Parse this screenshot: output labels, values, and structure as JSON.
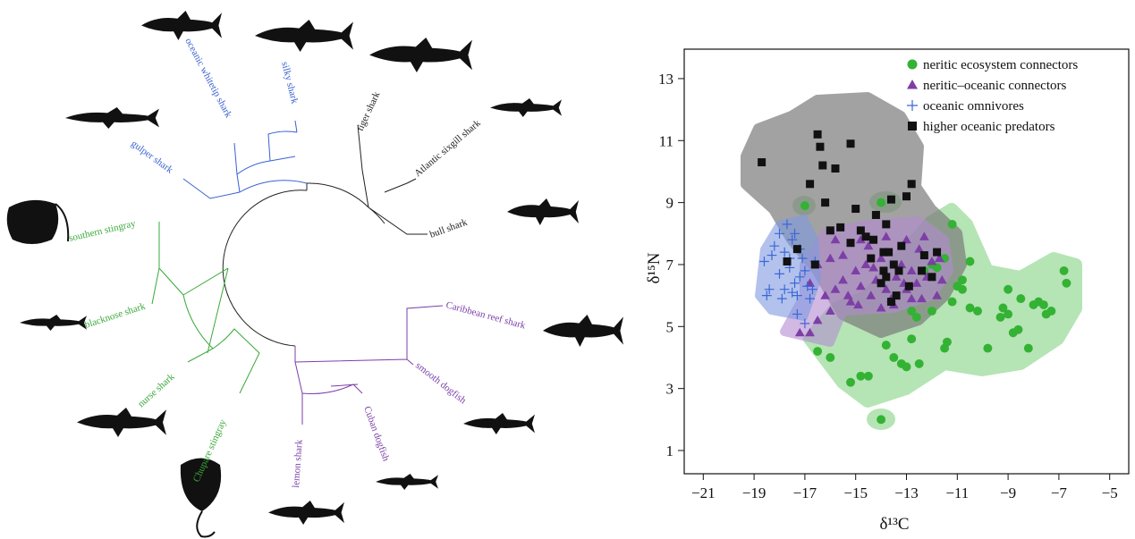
{
  "tree": {
    "leaves": [
      "oceanic whitetip shark",
      "silky shark",
      "tiger shark",
      "Atlantic sixgill shark",
      "bull shark",
      "gulper shark",
      "southern stingray",
      "blacknose shark",
      "nurse shark",
      "Chupare stingray",
      "lemon shark",
      "Cuban dogfish",
      "smooth dogfish",
      "Caribbean reef shark"
    ]
  },
  "chart_data": {
    "type": "scatter",
    "xlabel": "δ¹³C",
    "ylabel": "δ¹⁵N",
    "xlim": [
      -21.75,
      -4.25
    ],
    "ylim": [
      0.25,
      13.95
    ],
    "xticks": [
      {
        "value": -21,
        "label": "−21"
      },
      {
        "value": -19,
        "label": "−19"
      },
      {
        "value": -17,
        "label": "−17"
      },
      {
        "value": -15,
        "label": "−15"
      },
      {
        "value": -13,
        "label": "−13"
      },
      {
        "value": -11,
        "label": "−11"
      },
      {
        "value": -9,
        "label": "−9"
      },
      {
        "value": -7,
        "label": "−7"
      },
      {
        "value": -5,
        "label": "−5"
      }
    ],
    "yticks": [
      1,
      3,
      5,
      7,
      9,
      11,
      13
    ],
    "legend": "upper right",
    "series": [
      {
        "name": "neritic ecosystem connectors",
        "color": "#33b233",
        "marker": "circle",
        "points": [
          [
            -16.5,
            4.2
          ],
          [
            -16,
            4.0
          ],
          [
            -15.2,
            3.2
          ],
          [
            -14.8,
            3.4
          ],
          [
            -14.5,
            3.4
          ],
          [
            -13.8,
            4.4
          ],
          [
            -13.5,
            4.0
          ],
          [
            -13.2,
            3.8
          ],
          [
            -13,
            3.7
          ],
          [
            -12.8,
            4.6
          ],
          [
            -12.5,
            3.8
          ],
          [
            -11.5,
            4.3
          ],
          [
            -11.4,
            4.5
          ],
          [
            -12,
            5.5
          ],
          [
            -11.2,
            5.8
          ],
          [
            -10.8,
            6.2
          ],
          [
            -10.5,
            5.6
          ],
          [
            -10.2,
            5.5
          ],
          [
            -10.5,
            7.1
          ],
          [
            -10.8,
            6.5
          ],
          [
            -11,
            6.3
          ],
          [
            -11.5,
            7.2
          ],
          [
            -12,
            7.0
          ],
          [
            -12.3,
            6.8
          ],
          [
            -11.8,
            6.9
          ],
          [
            -12.8,
            5.5
          ],
          [
            -12.6,
            5.3
          ],
          [
            -11.2,
            8.3
          ],
          [
            -9.8,
            4.3
          ],
          [
            -9.2,
            5.6
          ],
          [
            -9,
            5.4
          ],
          [
            -8.8,
            4.8
          ],
          [
            -8.6,
            4.9
          ],
          [
            -8.2,
            4.3
          ],
          [
            -8,
            5.7
          ],
          [
            -7.8,
            5.8
          ],
          [
            -7.5,
            5.4
          ],
          [
            -7.3,
            5.5
          ],
          [
            -6.8,
            6.8
          ],
          [
            -6.7,
            6.4
          ],
          [
            -7.6,
            5.7
          ],
          [
            -8.5,
            5.9
          ],
          [
            -9.0,
            6.2
          ],
          [
            -9.3,
            5.3
          ],
          [
            -17,
            8.9
          ],
          [
            -14,
            9.0
          ],
          [
            -14,
            2.0
          ]
        ]
      },
      {
        "name": "neritic–oceanic connectors",
        "color": "#7d3fa6",
        "marker": "triangle",
        "points": [
          [
            -17.2,
            4.8
          ],
          [
            -16.8,
            4.8
          ],
          [
            -16.5,
            5.2
          ],
          [
            -16,
            5.5
          ],
          [
            -16.8,
            6.4
          ],
          [
            -16.2,
            6.0
          ],
          [
            -15.8,
            6.2
          ],
          [
            -15.5,
            6.5
          ],
          [
            -15.3,
            6.0
          ],
          [
            -15,
            6.8
          ],
          [
            -14.8,
            6.3
          ],
          [
            -14.6,
            7.0
          ],
          [
            -14.4,
            6.0
          ],
          [
            -14.2,
            6.5
          ],
          [
            -14,
            7.2
          ],
          [
            -13.8,
            6.2
          ],
          [
            -13.6,
            5.9
          ],
          [
            -13.4,
            6.6
          ],
          [
            -13.2,
            7.0
          ],
          [
            -13,
            6.2
          ],
          [
            -12.8,
            6.8
          ],
          [
            -12.6,
            6.4
          ],
          [
            -12.4,
            5.9
          ],
          [
            -12.2,
            6.6
          ],
          [
            -12,
            7.1
          ],
          [
            -11.8,
            6.0
          ],
          [
            -11.6,
            6.5
          ],
          [
            -12.5,
            7.5
          ],
          [
            -13,
            7.8
          ],
          [
            -14.5,
            7.6
          ],
          [
            -15.5,
            7.3
          ],
          [
            -16,
            7.2
          ],
          [
            -16.5,
            7.0
          ],
          [
            -15.2,
            5.8
          ],
          [
            -14,
            5.6
          ],
          [
            -13.5,
            5.7
          ],
          [
            -12.8,
            5.9
          ],
          [
            -12.3,
            7.9
          ],
          [
            -13.8,
            7.9
          ],
          [
            -14.8,
            7.8
          ],
          [
            -15.8,
            7.8
          ],
          [
            -11.7,
            7.2
          ],
          [
            -14.9,
            5.7
          ],
          [
            -13.1,
            6.4
          ],
          [
            -14.3,
            6.9
          ]
        ]
      },
      {
        "name": "oceanic omnivores",
        "color": "#3a66d8",
        "marker": "plus",
        "points": [
          [
            -18.5,
            6.0
          ],
          [
            -18.4,
            6.2
          ],
          [
            -18.6,
            7.1
          ],
          [
            -18.2,
            7.6
          ],
          [
            -18,
            8.0
          ],
          [
            -17.8,
            7.4
          ],
          [
            -17.6,
            6.9
          ],
          [
            -17.5,
            7.8
          ],
          [
            -17.4,
            6.4
          ],
          [
            -17.3,
            6.0
          ],
          [
            -17.2,
            6.6
          ],
          [
            -17.1,
            7.2
          ],
          [
            -17,
            6.8
          ],
          [
            -16.9,
            6.3
          ],
          [
            -16.8,
            5.9
          ],
          [
            -17.8,
            6.2
          ],
          [
            -18,
            6.7
          ],
          [
            -17.6,
            7.2
          ],
          [
            -17.2,
            7.5
          ],
          [
            -16.7,
            6.2
          ],
          [
            -16.6,
            7.1
          ],
          [
            -17.9,
            5.9
          ],
          [
            -17.5,
            6.1
          ],
          [
            -17.3,
            5.4
          ],
          [
            -17,
            5.1
          ],
          [
            -18.3,
            7.3
          ],
          [
            -17.7,
            8.3
          ],
          [
            -17.4,
            8.0
          ]
        ]
      },
      {
        "name": "higher oceanic predators",
        "color": "#111111",
        "marker": "square",
        "points": [
          [
            -18.7,
            10.3
          ],
          [
            -16.5,
            11.2
          ],
          [
            -16.4,
            10.8
          ],
          [
            -16.3,
            10.2
          ],
          [
            -15.2,
            10.9
          ],
          [
            -15.8,
            10.1
          ],
          [
            -16.8,
            9.6
          ],
          [
            -16.2,
            9.0
          ],
          [
            -13.6,
            9.1
          ],
          [
            -12.8,
            9.6
          ],
          [
            -13,
            9.2
          ],
          [
            -15,
            8.8
          ],
          [
            -14.2,
            8.6
          ],
          [
            -13.8,
            8.3
          ],
          [
            -15.6,
            8.2
          ],
          [
            -16,
            8.1
          ],
          [
            -14.8,
            8.1
          ],
          [
            -14.6,
            7.9
          ],
          [
            -14.3,
            7.8
          ],
          [
            -17.7,
            7.1
          ],
          [
            -17.3,
            7.5
          ],
          [
            -13.2,
            7.6
          ],
          [
            -11.8,
            7.4
          ],
          [
            -13.9,
            7.4
          ],
          [
            -13.7,
            7.4
          ],
          [
            -13.9,
            6.8
          ],
          [
            -13.8,
            6.6
          ],
          [
            -13.5,
            7.0
          ],
          [
            -14,
            6.4
          ],
          [
            -13.3,
            6.8
          ],
          [
            -12.9,
            6.3
          ],
          [
            -13.4,
            6.0
          ],
          [
            -13.6,
            5.8
          ],
          [
            -12.3,
            7.3
          ],
          [
            -12.0,
            6.6
          ],
          [
            -14.4,
            7.2
          ],
          [
            -15.2,
            7.7
          ],
          [
            -16.6,
            7.0
          ],
          [
            -12.4,
            6.8
          ]
        ]
      }
    ]
  }
}
